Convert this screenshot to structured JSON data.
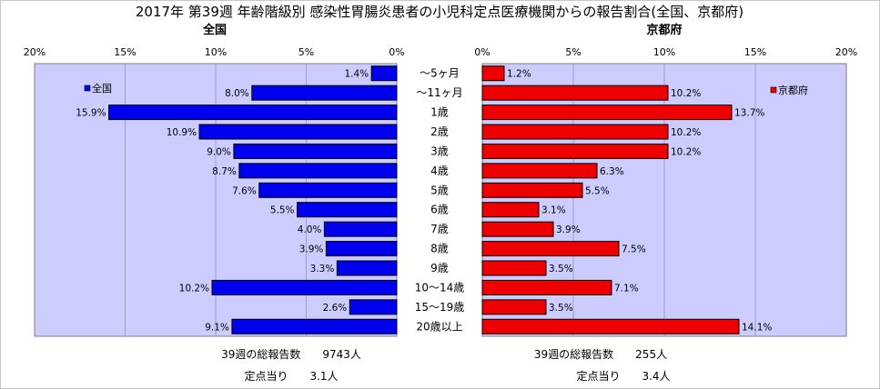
{
  "title": "2017年 第39週 年齢階級別 感染性胃腸炎患者の小児科定点医療機関からの報告割合(全国、京都府)",
  "colors": {
    "national": "#0000ee",
    "kyoto": "#ee0000",
    "plot_bg": "#ccccff",
    "grid": "#a0a0c8"
  },
  "chart_data": {
    "type": "bar",
    "orientation": "horizontal-butterfly",
    "categories": [
      "～5ヶ月",
      "～11ヶ月",
      "1歳",
      "2歳",
      "3歳",
      "4歳",
      "5歳",
      "6歳",
      "7歳",
      "8歳",
      "9歳",
      "10～14歳",
      "15～19歳",
      "20歳以上"
    ],
    "xlim": [
      0,
      20
    ],
    "ticks": [
      0,
      5,
      10,
      15,
      20
    ],
    "tick_labels_left": [
      "20%",
      "15%",
      "10%",
      "5%",
      "0%"
    ],
    "tick_labels_right": [
      "0%",
      "5%",
      "10%",
      "15%",
      "20%"
    ],
    "series": [
      {
        "name": "全国",
        "panel_title": "全国",
        "side": "left",
        "values": [
          1.4,
          8.0,
          15.9,
          10.9,
          9.0,
          8.7,
          7.6,
          5.5,
          4.0,
          3.9,
          3.3,
          10.2,
          2.6,
          9.1
        ],
        "labels": [
          "1.4%",
          "8.0%",
          "15.9%",
          "10.9%",
          "9.0%",
          "8.7%",
          "7.6%",
          "5.5%",
          "4.0%",
          "3.9%",
          "3.3%",
          "10.2%",
          "2.6%",
          "9.1%"
        ]
      },
      {
        "name": "京都府",
        "panel_title": "京都府",
        "side": "right",
        "values": [
          1.2,
          10.2,
          13.7,
          10.2,
          10.2,
          6.3,
          5.5,
          3.1,
          3.9,
          7.5,
          3.5,
          7.1,
          3.5,
          14.1
        ],
        "labels": [
          "1.2%",
          "10.2%",
          "13.7%",
          "10.2%",
          "10.2%",
          "6.3%",
          "5.5%",
          "3.1%",
          "3.9%",
          "7.5%",
          "3.5%",
          "7.1%",
          "3.5%",
          "14.1%"
        ]
      }
    ],
    "legend": [
      "全国",
      "京都府"
    ],
    "grid": true
  },
  "footer": {
    "national_total": "39週の総報告数　　9743人",
    "national_per_site": "定点当り　　3.1人",
    "kyoto_total": "39週の総報告数　　255人",
    "kyoto_per_site": "定点当り　　3.4人"
  }
}
